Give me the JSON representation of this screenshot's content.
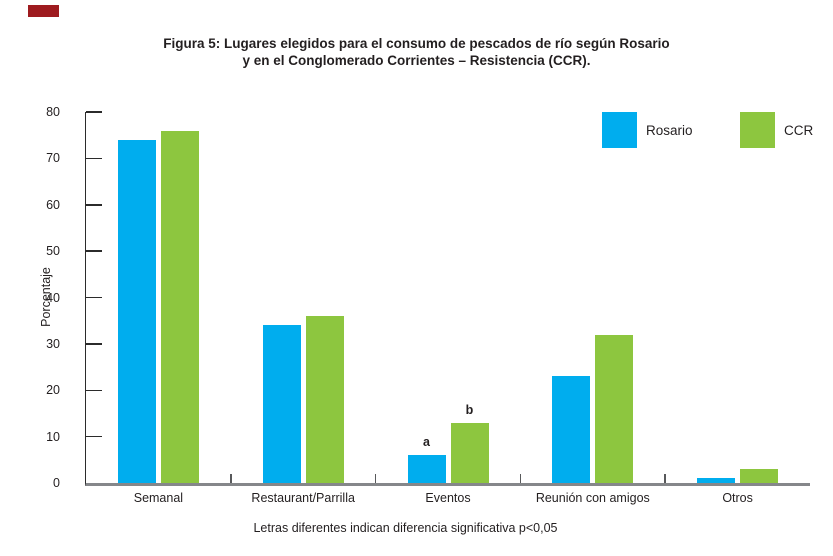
{
  "page": {
    "red_mark_color": "#9e1b1f",
    "background": "#ffffff",
    "text_color": "#231f20",
    "axis_color": "#2b2b2b",
    "baseline_color": "#85878a"
  },
  "title": {
    "line1": "Figura 5: Lugares elegidos para el consumo de pescados de río según Rosario",
    "line2": "y en el Conglomerado Corrientes – Resistencia (CCR)."
  },
  "chart_data": {
    "type": "bar",
    "categories": [
      "Semanal",
      "Restaurant/Parrilla",
      "Eventos",
      "Reunión con amigos",
      "Otros"
    ],
    "series": [
      {
        "name": "Rosario",
        "color": "#00ADEE",
        "values": [
          74,
          34,
          6,
          23,
          1
        ],
        "point_labels": [
          "",
          "",
          "a",
          "",
          ""
        ]
      },
      {
        "name": "CCR",
        "color": "#8DC63F",
        "values": [
          76,
          36,
          13,
          32,
          3
        ],
        "point_labels": [
          "",
          "",
          "b",
          "",
          ""
        ]
      }
    ],
    "xlabel": "",
    "ylabel": "Porcentaje",
    "ylim": [
      0,
      80
    ],
    "yticks": [
      0,
      10,
      20,
      30,
      40,
      50,
      60,
      70,
      80
    ],
    "grid": false,
    "legend_position": "top-right"
  },
  "footer": {
    "note": "Letras diferentes indican diferencia significativa p<0,05"
  }
}
